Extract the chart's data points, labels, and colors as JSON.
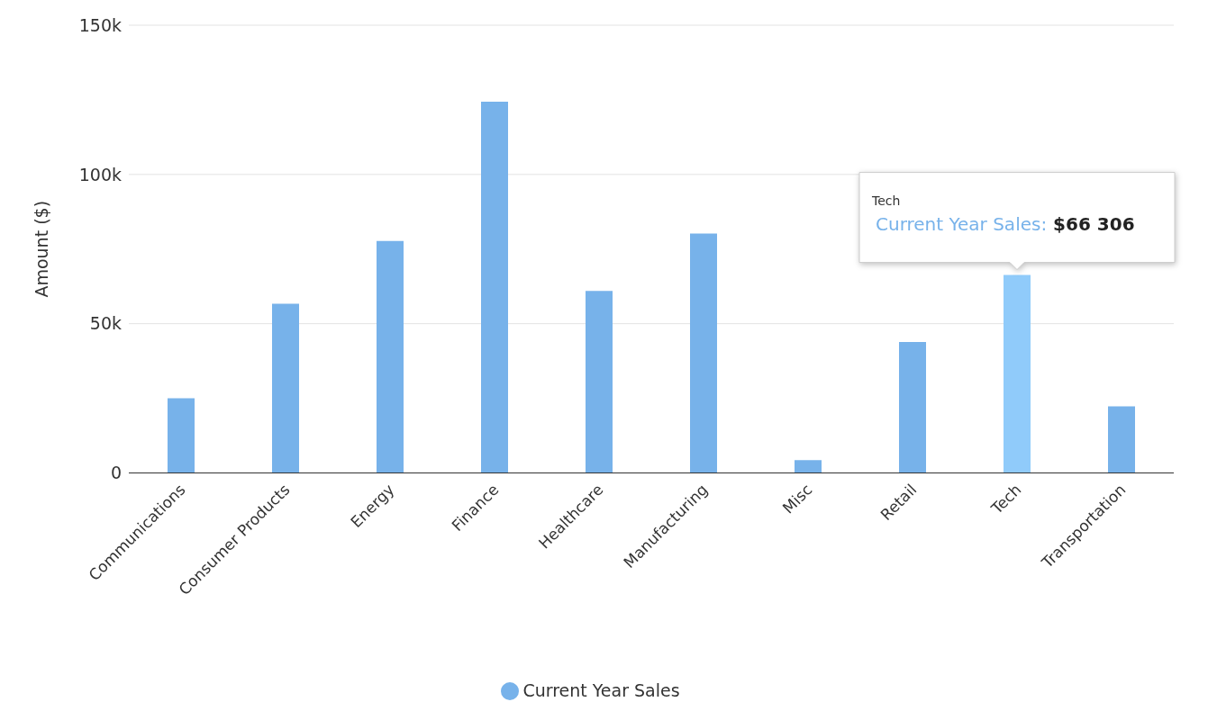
{
  "chart_data": {
    "type": "bar",
    "categories": [
      "Communications",
      "Consumer Products",
      "Energy",
      "Finance",
      "Healthcare",
      "Manufacturing",
      "Misc",
      "Retail",
      "Tech",
      "Transportation"
    ],
    "series": [
      {
        "name": "Current Year Sales",
        "color": "#77b2ea",
        "values": [
          25000,
          56700,
          77700,
          124400,
          61000,
          80200,
          4300,
          43900,
          66306,
          22300
        ],
        "colors": [
          "#77b2ea",
          "#77b2ea",
          "#77b2ea",
          "#77b2ea",
          "#77b2ea",
          "#77b2ea",
          "#77b2ea",
          "#77b2ea",
          "#90cbfa",
          "#77b2ea"
        ]
      }
    ],
    "ylabel": "Amount ($)",
    "ylim": [
      0,
      150000
    ],
    "yticks": [
      {
        "value": 0,
        "label": "0"
      },
      {
        "value": 50000,
        "label": "50k"
      },
      {
        "value": 100000,
        "label": "100k"
      },
      {
        "value": 150000,
        "label": "150k"
      }
    ],
    "annotations": [
      "Tech",
      {
        "text": "Current Year Sales: $66 306",
        "x": "Tech",
        "y": 66306
      }
    ],
    "grid": "y",
    "legend": "bottom",
    "marker": "circle"
  }
}
